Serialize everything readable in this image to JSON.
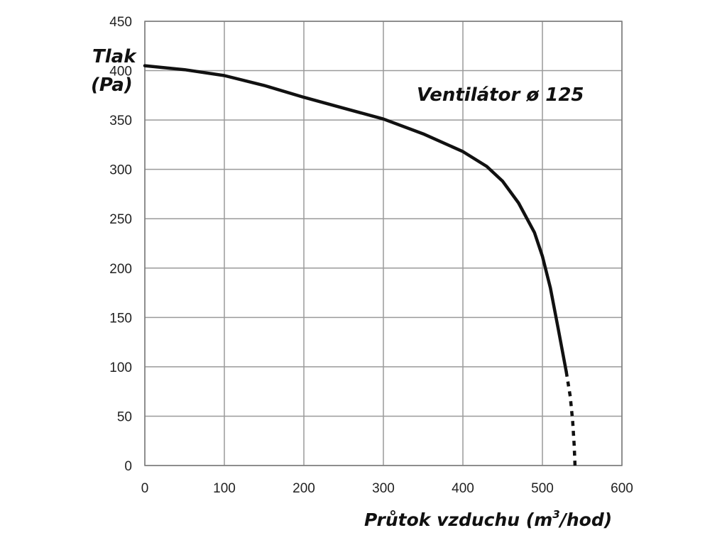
{
  "chart_data": {
    "type": "line",
    "title": "",
    "annotation": "Ventilátor ø 125",
    "ylabel_lines": [
      "Tlak",
      "(Pa)"
    ],
    "xlabel_prefix": "Průtok vzduchu (m",
    "xlabel_sup": "3",
    "xlabel_suffix": "/hod)",
    "xlim": [
      0,
      600
    ],
    "ylim": [
      0,
      450
    ],
    "x_ticks": [
      "0",
      "100",
      "200",
      "300",
      "400",
      "500",
      "600"
    ],
    "y_ticks": [
      "0",
      "50",
      "100",
      "150",
      "200",
      "250",
      "300",
      "350",
      "400",
      "450"
    ],
    "grid": true,
    "series": [
      {
        "style": "solid",
        "color": "#111111",
        "x": [
          0,
          50,
          100,
          150,
          200,
          250,
          300,
          350,
          400,
          430,
          450,
          470,
          490,
          500,
          510,
          520,
          530
        ],
        "y": [
          405,
          401,
          395,
          385,
          373,
          362,
          351,
          336,
          318,
          303,
          288,
          266,
          236,
          212,
          180,
          138,
          95
        ]
      },
      {
        "style": "dotted",
        "color": "#111111",
        "x": [
          530,
          535,
          538,
          540,
          541
        ],
        "y": [
          95,
          70,
          45,
          20,
          0
        ]
      }
    ]
  }
}
